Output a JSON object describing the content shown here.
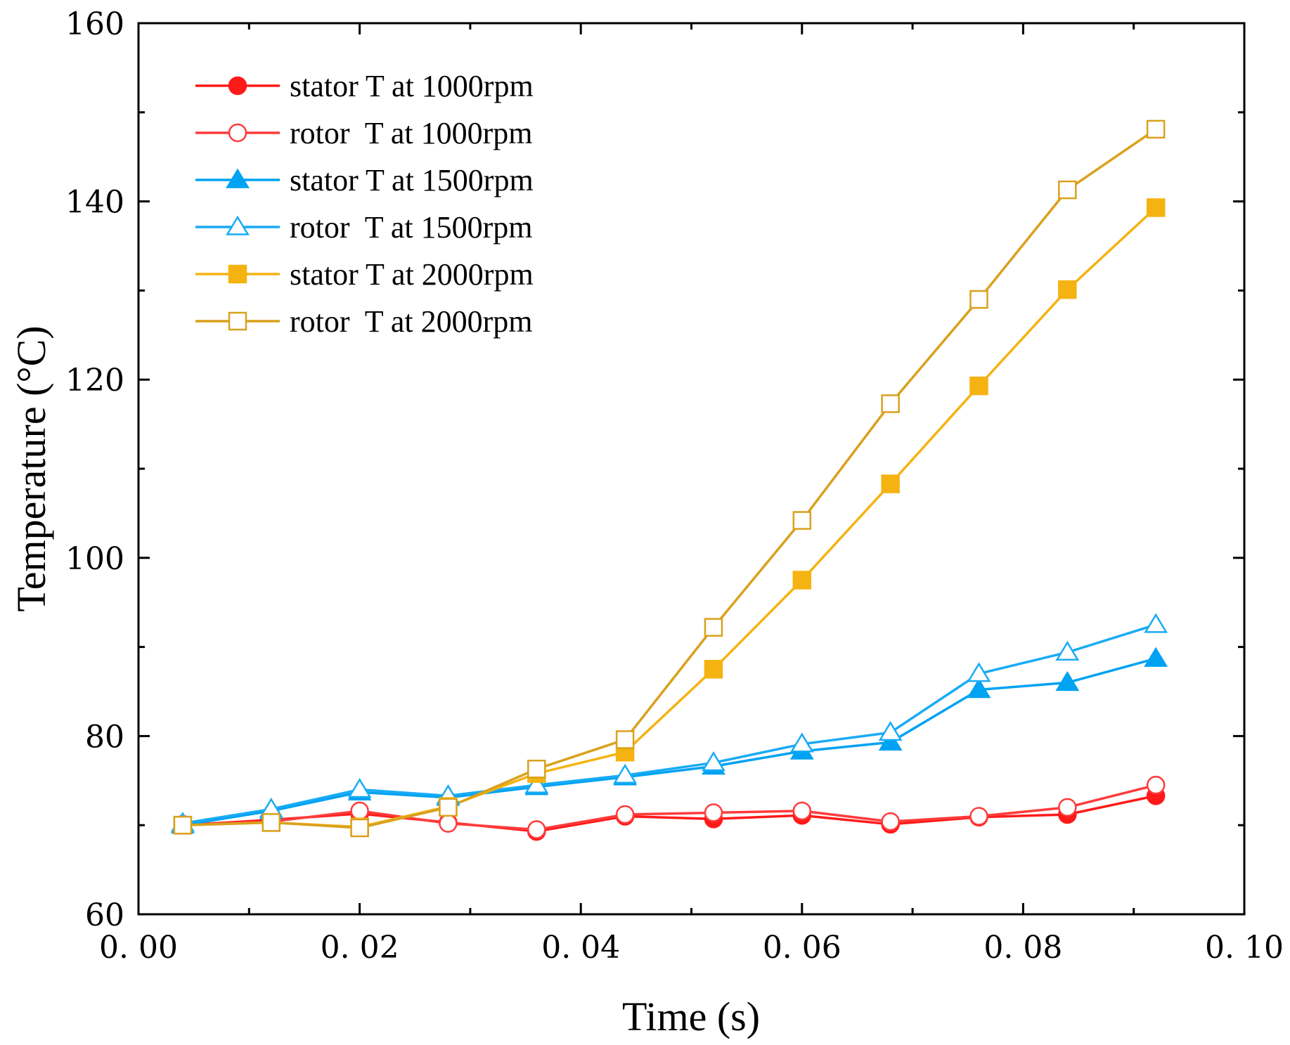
{
  "chart_data": {
    "type": "line",
    "title": "",
    "xlabel": "Time (s)",
    "ylabel": "Temperature (°C)",
    "xlim": [
      0.0,
      0.1
    ],
    "ylim": [
      60,
      160
    ],
    "grid": false,
    "legend_position": "top-left",
    "x_ticks": [
      0.0,
      0.02,
      0.04,
      0.06,
      0.08,
      0.1
    ],
    "x_tick_labels": [
      "0. 00",
      "0. 02",
      "0. 04",
      "0. 06",
      "0. 08",
      "0. 10"
    ],
    "y_ticks": [
      60,
      80,
      100,
      120,
      140,
      160
    ],
    "y_tick_labels": [
      "60",
      "80",
      "100",
      "120",
      "140",
      "160"
    ],
    "x": [
      0.004,
      0.012,
      0.02,
      0.028,
      0.036,
      0.044,
      0.052,
      0.06,
      0.068,
      0.076,
      0.084,
      0.092
    ],
    "series": [
      {
        "name": "stator T at 1000rpm",
        "color": "#ff1a1a",
        "marker": "circle",
        "filled": true,
        "values": [
          70.0,
          70.6,
          71.3,
          70.3,
          69.3,
          71.0,
          70.7,
          71.1,
          70.1,
          70.9,
          71.2,
          73.3
        ]
      },
      {
        "name": "rotor  T at 1000rpm",
        "color": "#ff3b3b",
        "marker": "circle",
        "filled": false,
        "values": [
          70.1,
          70.4,
          71.6,
          70.2,
          69.5,
          71.2,
          71.4,
          71.6,
          70.4,
          71.0,
          72.0,
          74.5
        ]
      },
      {
        "name": "stator T at 1500rpm",
        "color": "#00a2f2",
        "marker": "triangle",
        "filled": true,
        "values": [
          70.0,
          71.6,
          73.7,
          73.1,
          74.3,
          75.4,
          76.6,
          78.3,
          79.3,
          85.2,
          86.0,
          88.7
        ]
      },
      {
        "name": "rotor  T at 1500rpm",
        "color": "#19abf5",
        "marker": "triangle",
        "filled": false,
        "values": [
          70.2,
          71.8,
          74.0,
          73.3,
          74.5,
          75.6,
          77.0,
          79.1,
          80.4,
          87.0,
          89.4,
          92.5
        ]
      },
      {
        "name": "stator T at 2000rpm",
        "color": "#f5b312",
        "marker": "square",
        "filled": true,
        "values": [
          70.0,
          70.3,
          69.8,
          72.1,
          75.8,
          78.2,
          87.5,
          97.5,
          108.3,
          119.3,
          130.1,
          139.3
        ]
      },
      {
        "name": "rotor  T at 2000rpm",
        "color": "#d9a11c",
        "marker": "square",
        "filled": false,
        "values": [
          70.0,
          70.3,
          69.7,
          72.0,
          76.3,
          79.6,
          92.2,
          104.2,
          117.3,
          129.0,
          141.3,
          148.1
        ]
      }
    ]
  }
}
